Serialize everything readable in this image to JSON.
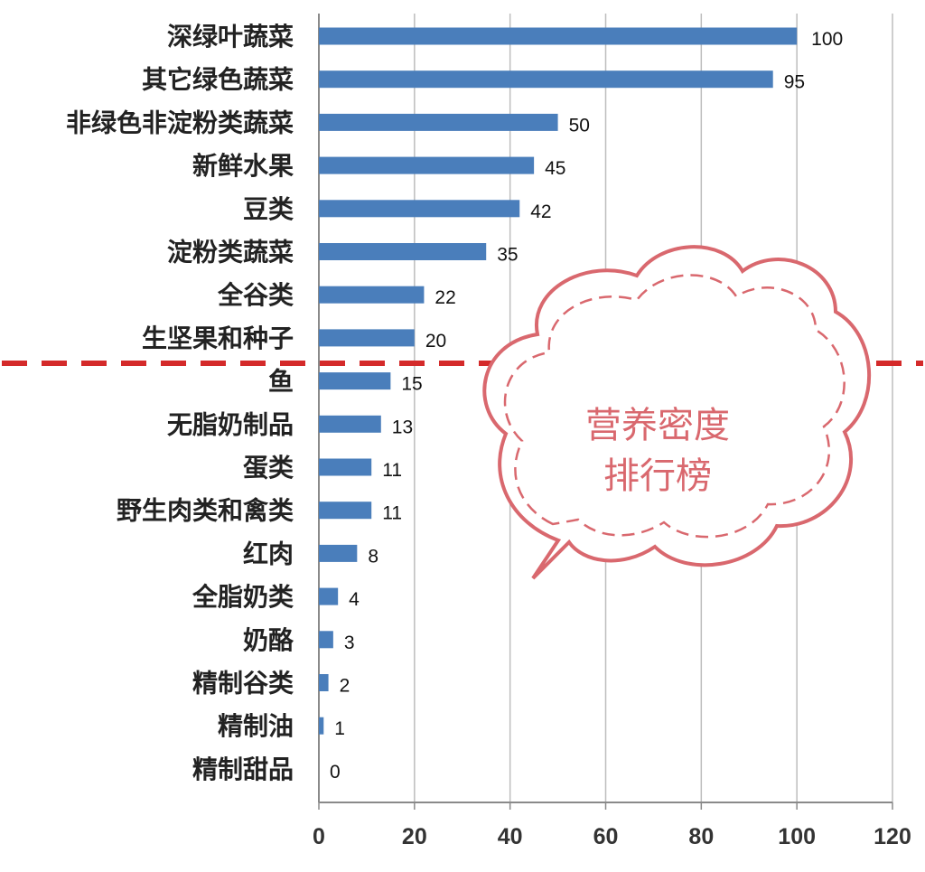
{
  "chart_data": {
    "type": "bar",
    "orientation": "horizontal",
    "categories": [
      "深绿叶蔬菜",
      "其它绿色蔬菜",
      "非绿色非淀粉类蔬菜",
      "新鲜水果",
      "豆类",
      "淀粉类蔬菜",
      "全谷类",
      "生坚果和种子",
      "鱼",
      "无脂奶制品",
      "蛋类",
      "野生肉类和禽类",
      "红肉",
      "全脂奶类",
      "奶酪",
      "精制谷类",
      "精制油",
      "精制甜品"
    ],
    "values": [
      100,
      95,
      50,
      45,
      42,
      35,
      22,
      20,
      15,
      13,
      11,
      11,
      8,
      4,
      3,
      2,
      1,
      0
    ],
    "value_labels": [
      "100",
      "95",
      "50",
      "45",
      "42",
      "35",
      "22",
      "20",
      "15",
      "13",
      "11",
      "11",
      "8",
      "4",
      "3",
      "2",
      "1",
      "0"
    ],
    "xlim": [
      0,
      120
    ],
    "xticks": [
      "0",
      "20",
      "40",
      "60",
      "80",
      "100",
      "120"
    ],
    "grid": "vertical",
    "bar_color": "#4a7ebb",
    "divider_after_index": 7,
    "divider_color": "#d42a2a"
  },
  "callout": {
    "line1": "营养密度",
    "line2": "排行榜",
    "border_color": "#d9686e",
    "text_color": "#d9686e"
  }
}
